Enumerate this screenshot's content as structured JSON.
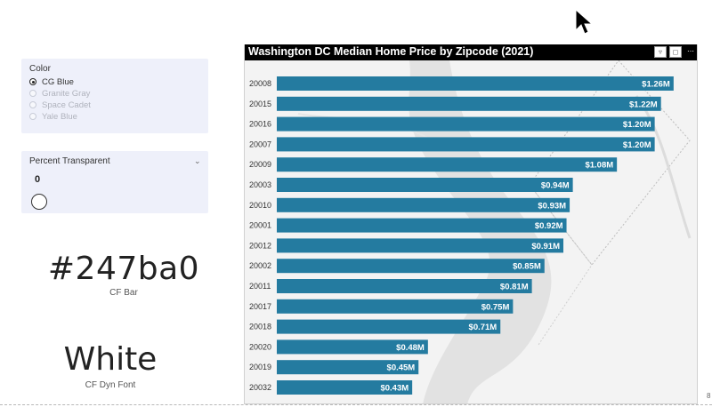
{
  "color_slicer": {
    "title": "Color",
    "options": [
      {
        "label": "CG Blue",
        "selected": true
      },
      {
        "label": "Granite Gray",
        "selected": false
      },
      {
        "label": "Space Cadet",
        "selected": false
      },
      {
        "label": "Yale Blue",
        "selected": false
      }
    ]
  },
  "percent_slicer": {
    "title": "Percent Transparent",
    "value": "0"
  },
  "hex_card": {
    "value": "#247ba0",
    "caption": "CF Bar"
  },
  "font_card": {
    "value": "White",
    "caption": "CF Dyn Font"
  },
  "page_number": "8",
  "icons": {
    "filter": "filter-icon",
    "focus": "focus-mode-icon",
    "more": "more-options-icon",
    "cursor": "mouse-cursor-icon",
    "dropdown": "chevron-down-icon"
  },
  "colors": {
    "bar": "#247ba0",
    "label": "#ffffff",
    "header": "#000000",
    "slicer_bg": "#eef0fa"
  },
  "chart_data": {
    "type": "bar",
    "orientation": "horizontal",
    "title": "Washington DC Median Home Price by Zipcode (2021)",
    "categories": [
      "20008",
      "20015",
      "20016",
      "20007",
      "20009",
      "20003",
      "20010",
      "20001",
      "20012",
      "20002",
      "20011",
      "20017",
      "20018",
      "20020",
      "20019",
      "20032"
    ],
    "values": [
      1.26,
      1.22,
      1.2,
      1.2,
      1.08,
      0.94,
      0.93,
      0.92,
      0.91,
      0.85,
      0.81,
      0.75,
      0.71,
      0.48,
      0.45,
      0.43
    ],
    "value_labels": [
      "$1.26M",
      "$1.22M",
      "$1.20M",
      "$1.20M",
      "$1.08M",
      "$0.94M",
      "$0.93M",
      "$0.92M",
      "$0.91M",
      "$0.85M",
      "$0.81M",
      "$0.75M",
      "$0.71M",
      "$0.48M",
      "$0.45M",
      "$0.43M"
    ],
    "xlim": [
      0,
      1.3
    ],
    "grid": false,
    "legend": "none",
    "background": "map"
  }
}
